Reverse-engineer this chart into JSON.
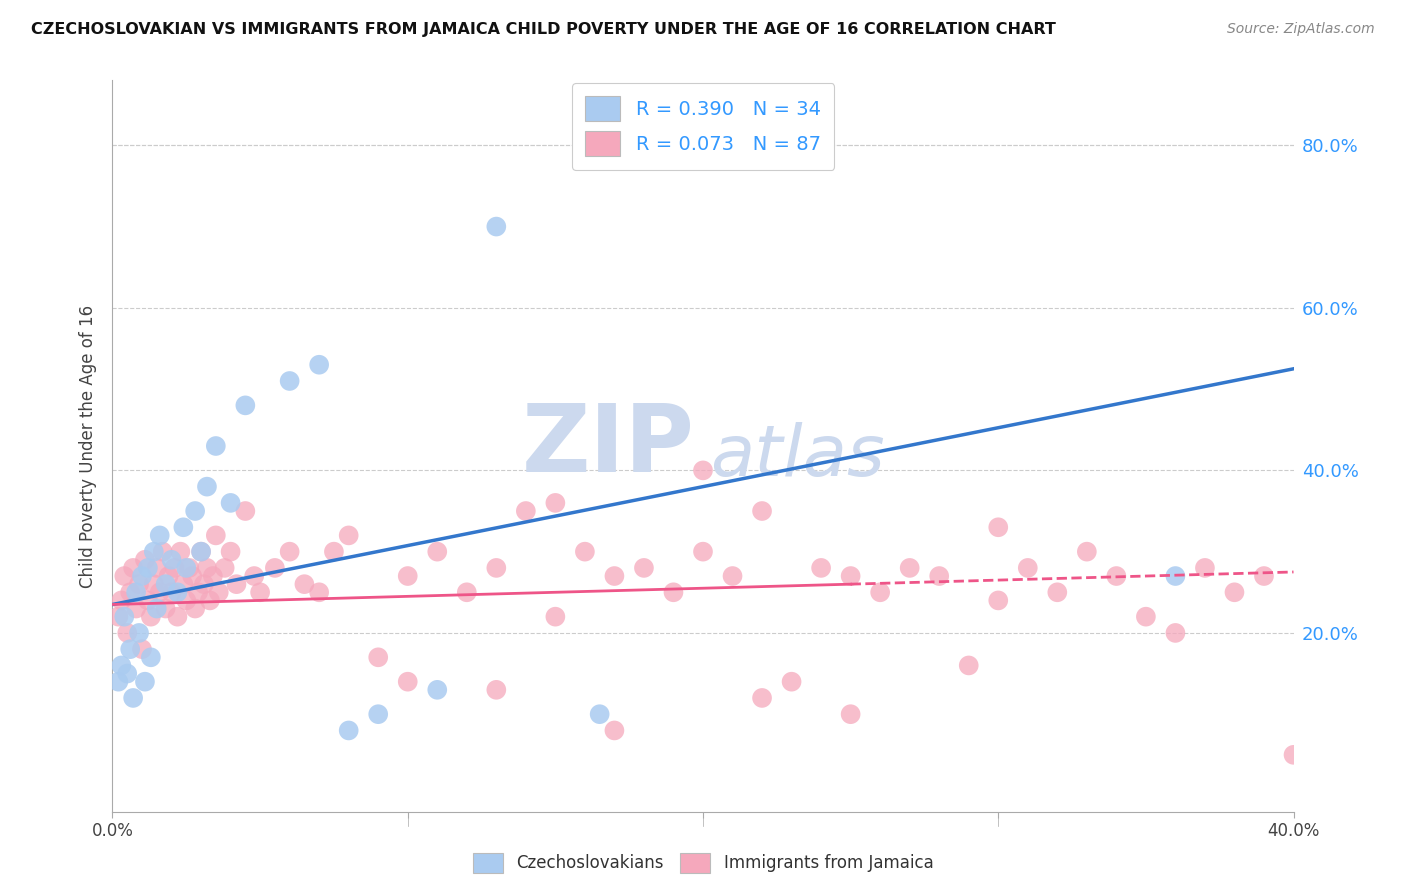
{
  "title": "CZECHOSLOVAKIAN VS IMMIGRANTS FROM JAMAICA CHILD POVERTY UNDER THE AGE OF 16 CORRELATION CHART",
  "source": "Source: ZipAtlas.com",
  "ylabel": "Child Poverty Under the Age of 16",
  "ytick_labels": [
    "20.0%",
    "40.0%",
    "60.0%",
    "80.0%"
  ],
  "ytick_values": [
    0.2,
    0.4,
    0.6,
    0.8
  ],
  "xlim": [
    0.0,
    0.4
  ],
  "ylim": [
    -0.02,
    0.88
  ],
  "legend1_label": "R = 0.390   N = 34",
  "legend2_label": "R = 0.073   N = 87",
  "series1_color": "#aacbf0",
  "series2_color": "#f5a8bc",
  "series1_line_color": "#3377cc",
  "series2_line_color": "#ee5588",
  "watermark_zip": "ZIP",
  "watermark_atlas": "atlas",
  "watermark_color": "#ccd9ee",
  "series1_label": "Czechoslovakians",
  "series2_label": "Immigrants from Jamaica",
  "background_color": "#ffffff",
  "grid_color": "#cccccc",
  "series1_x": [
    0.002,
    0.003,
    0.004,
    0.005,
    0.006,
    0.007,
    0.008,
    0.009,
    0.01,
    0.011,
    0.012,
    0.013,
    0.014,
    0.015,
    0.016,
    0.018,
    0.02,
    0.022,
    0.024,
    0.025,
    0.028,
    0.03,
    0.032,
    0.035,
    0.04,
    0.045,
    0.06,
    0.07,
    0.08,
    0.09,
    0.11,
    0.13,
    0.165,
    0.36
  ],
  "series1_y": [
    0.14,
    0.16,
    0.22,
    0.15,
    0.18,
    0.12,
    0.25,
    0.2,
    0.27,
    0.14,
    0.28,
    0.17,
    0.3,
    0.23,
    0.32,
    0.26,
    0.29,
    0.25,
    0.33,
    0.28,
    0.35,
    0.3,
    0.38,
    0.43,
    0.36,
    0.48,
    0.51,
    0.53,
    0.08,
    0.1,
    0.13,
    0.7,
    0.1,
    0.27
  ],
  "series2_x": [
    0.002,
    0.003,
    0.004,
    0.005,
    0.006,
    0.007,
    0.008,
    0.009,
    0.01,
    0.011,
    0.012,
    0.013,
    0.014,
    0.015,
    0.016,
    0.017,
    0.018,
    0.019,
    0.02,
    0.021,
    0.022,
    0.023,
    0.024,
    0.025,
    0.026,
    0.027,
    0.028,
    0.029,
    0.03,
    0.031,
    0.032,
    0.033,
    0.034,
    0.035,
    0.036,
    0.038,
    0.04,
    0.042,
    0.045,
    0.048,
    0.05,
    0.055,
    0.06,
    0.065,
    0.07,
    0.075,
    0.08,
    0.09,
    0.1,
    0.11,
    0.12,
    0.13,
    0.14,
    0.15,
    0.16,
    0.17,
    0.18,
    0.19,
    0.2,
    0.21,
    0.22,
    0.23,
    0.24,
    0.25,
    0.26,
    0.27,
    0.28,
    0.29,
    0.3,
    0.31,
    0.32,
    0.33,
    0.34,
    0.35,
    0.36,
    0.37,
    0.38,
    0.39,
    0.4,
    0.15,
    0.2,
    0.25,
    0.3,
    0.1,
    0.13,
    0.17,
    0.22
  ],
  "series2_y": [
    0.22,
    0.24,
    0.27,
    0.2,
    0.25,
    0.28,
    0.23,
    0.26,
    0.18,
    0.29,
    0.24,
    0.22,
    0.26,
    0.28,
    0.25,
    0.3,
    0.23,
    0.27,
    0.25,
    0.28,
    0.22,
    0.3,
    0.26,
    0.24,
    0.28,
    0.27,
    0.23,
    0.25,
    0.3,
    0.26,
    0.28,
    0.24,
    0.27,
    0.32,
    0.25,
    0.28,
    0.3,
    0.26,
    0.35,
    0.27,
    0.25,
    0.28,
    0.3,
    0.26,
    0.25,
    0.3,
    0.32,
    0.17,
    0.27,
    0.3,
    0.25,
    0.28,
    0.35,
    0.22,
    0.3,
    0.27,
    0.28,
    0.25,
    0.3,
    0.27,
    0.35,
    0.14,
    0.28,
    0.27,
    0.25,
    0.28,
    0.27,
    0.16,
    0.24,
    0.28,
    0.25,
    0.3,
    0.27,
    0.22,
    0.2,
    0.28,
    0.25,
    0.27,
    0.05,
    0.36,
    0.4,
    0.1,
    0.33,
    0.14,
    0.13,
    0.08,
    0.12
  ],
  "line1_x0": 0.0,
  "line1_y0": 0.235,
  "line1_x1": 0.4,
  "line1_y1": 0.525,
  "line2_x0": 0.0,
  "line2_y0": 0.235,
  "line2_x1": 0.4,
  "line2_y1": 0.275,
  "line2_solid_end": 0.25,
  "right_tick_color": "#3399ff"
}
